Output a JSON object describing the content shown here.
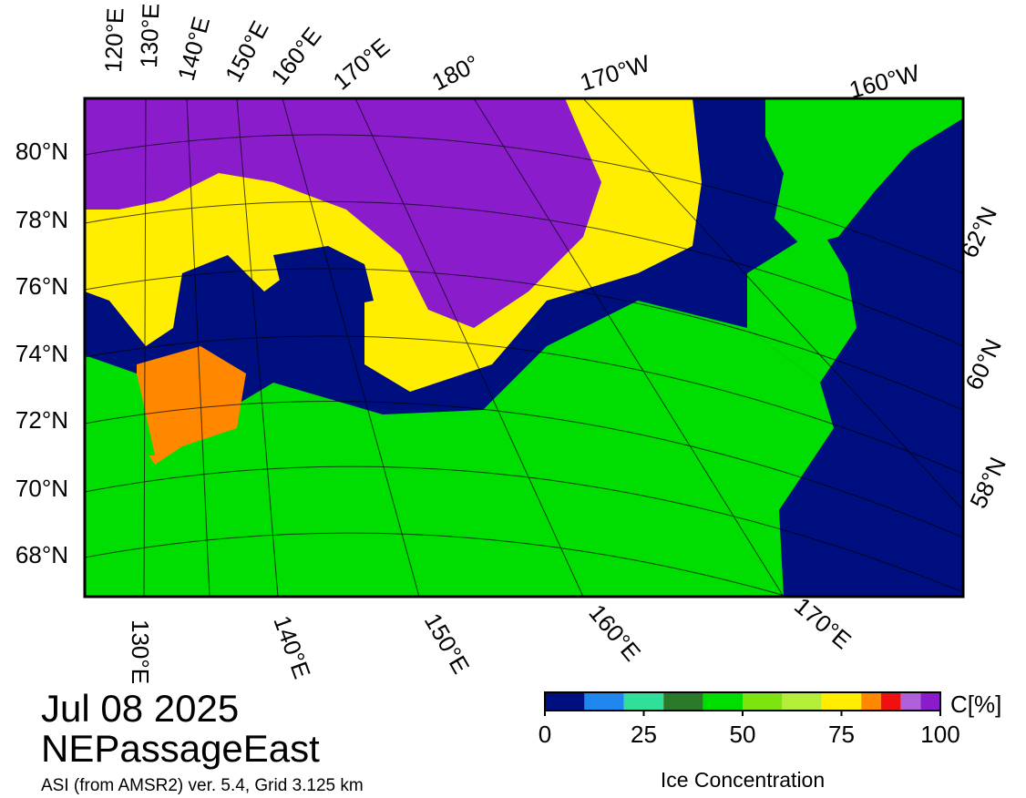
{
  "date": "Jul 08 2025",
  "region": "NEPassageEast",
  "source": "ASI (from AMSR2) ver. 5.4,  Grid 3.125 km",
  "map": {
    "lon_labels_top": [
      "120°E",
      "130°E",
      "140°E",
      "150°E",
      "160°E",
      "170°E",
      "180°",
      "170°W",
      "160°W"
    ],
    "lat_labels_left": [
      "80°N",
      "78°N",
      "76°N",
      "74°N",
      "72°N",
      "70°N",
      "68°N"
    ],
    "lat_labels_right": [
      "62°N",
      "60°N",
      "58°N"
    ],
    "lon_labels_bottom": [
      "130°E",
      "140°E",
      "150°E",
      "160°E",
      "170°E"
    ]
  },
  "colorbar": {
    "label": "Ice Concentration",
    "unit": "C[%]",
    "range": [
      0,
      100
    ],
    "ticks": [
      0,
      25,
      50,
      75,
      100
    ],
    "bounds": [
      0,
      10,
      20,
      30,
      40,
      50,
      60,
      70,
      80,
      85,
      90,
      95,
      100
    ],
    "colors": [
      "#000f80",
      "#1f86ef",
      "#2fe09a",
      "#2a7a2a",
      "#00dd00",
      "#7ee40f",
      "#b4ee3a",
      "#ffee00",
      "#ff8800",
      "#f01010",
      "#b060d8",
      "#8a1ccc"
    ]
  }
}
